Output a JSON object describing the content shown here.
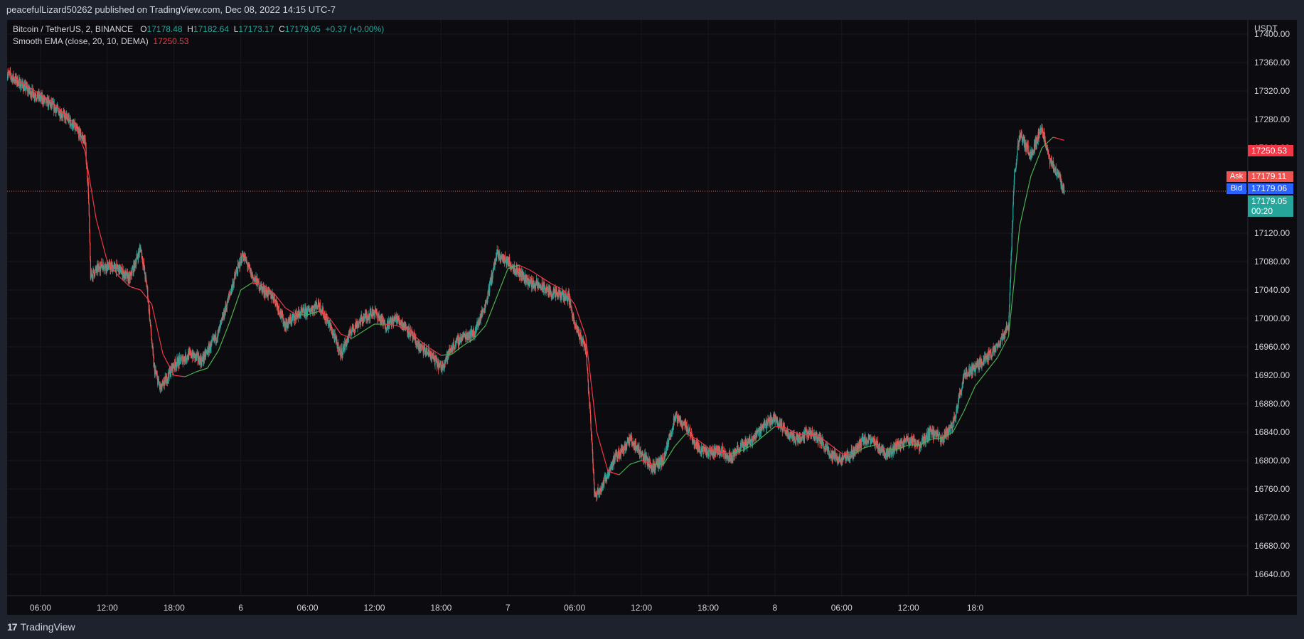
{
  "header": {
    "publisher": "peacefulLizard50262 published on TradingView.com, Dec 08, 2022 14:15 UTC-7"
  },
  "legend": {
    "symbol": "Bitcoin / TetherUS, 2, BINANCE",
    "o_label": "O",
    "o_value": "17178.48",
    "h_label": "H",
    "h_value": "17182.64",
    "l_label": "L",
    "l_value": "17173.17",
    "c_label": "C",
    "c_value": "17179.05",
    "change": "+0.37 (+0.00%)",
    "indicator": "Smooth EMA (close, 20, 10, DEMA)",
    "indicator_value": "17250.53"
  },
  "axis": {
    "currency": "USDT",
    "y_ticks": [
      "17400.00",
      "17360.00",
      "17320.00",
      "17280.00",
      "17240.00",
      "17120.00",
      "17080.00",
      "17040.00",
      "17000.00",
      "16960.00",
      "16920.00",
      "16880.00",
      "16840.00",
      "16800.00",
      "16760.00",
      "16720.00",
      "16680.00",
      "16640.00"
    ],
    "x_ticks": [
      "06:00",
      "12:00",
      "18:00",
      "6",
      "06:00",
      "12:00",
      "18:00",
      "7",
      "06:00",
      "12:00",
      "18:00",
      "8",
      "06:00",
      "12:00",
      "18:0"
    ]
  },
  "labels": {
    "ema_price": "17250.53",
    "ask_tag": "Ask",
    "ask_price": "17179.11",
    "bid_tag": "Bid",
    "bid_price": "17179.06",
    "last_price": "17179.05",
    "countdown": "00:20"
  },
  "footer": {
    "brand": "TradingView",
    "logo_glyph": "17"
  },
  "colors": {
    "up": "#26a69a",
    "down": "#ef5350",
    "ema_down": "#f23645",
    "ema_up": "#4caf50",
    "bid": "#2962ff",
    "bg": "#0c0c10"
  },
  "chart_data": {
    "type": "candlestick",
    "ylim": [
      16610,
      17420
    ],
    "x_hours_range": [
      -21,
      90.5
    ],
    "last_price": 17179.05,
    "ema_value": 17250.53,
    "anchors": [
      [
        -21,
        17345
      ],
      [
        -19,
        17320
      ],
      [
        -17,
        17300
      ],
      [
        -15.5,
        17280
      ],
      [
        -14,
        17250
      ],
      [
        -13.7,
        17180
      ],
      [
        -13.5,
        17060
      ],
      [
        -12.5,
        17075
      ],
      [
        -11,
        17070
      ],
      [
        -10,
        17055
      ],
      [
        -9,
        17100
      ],
      [
        -8.4,
        17040
      ],
      [
        -7.8,
        16930
      ],
      [
        -7.2,
        16900
      ],
      [
        -6,
        16935
      ],
      [
        -4.5,
        16950
      ],
      [
        -3.5,
        16940
      ],
      [
        -2,
        16980
      ],
      [
        -0.5,
        17060
      ],
      [
        0.2,
        17090
      ],
      [
        1,
        17060
      ],
      [
        2,
        17040
      ],
      [
        3,
        17030
      ],
      [
        4,
        16990
      ],
      [
        5,
        17005
      ],
      [
        6,
        17010
      ],
      [
        7,
        17020
      ],
      [
        8,
        16990
      ],
      [
        9,
        16950
      ],
      [
        10,
        16985
      ],
      [
        11,
        17000
      ],
      [
        12,
        17010
      ],
      [
        13,
        16990
      ],
      [
        14,
        17000
      ],
      [
        15,
        16985
      ],
      [
        16,
        16960
      ],
      [
        17,
        16950
      ],
      [
        18,
        16930
      ],
      [
        19,
        16960
      ],
      [
        20,
        16975
      ],
      [
        21,
        16980
      ],
      [
        22,
        17020
      ],
      [
        23,
        17090
      ],
      [
        24,
        17080
      ],
      [
        25,
        17065
      ],
      [
        26,
        17050
      ],
      [
        27,
        17045
      ],
      [
        28,
        17035
      ],
      [
        29.5,
        17030
      ],
      [
        30,
        16990
      ],
      [
        31,
        16960
      ],
      [
        31.5,
        16840
      ],
      [
        31.8,
        16750
      ],
      [
        32.5,
        16765
      ],
      [
        33.5,
        16800
      ],
      [
        35,
        16830
      ],
      [
        36,
        16810
      ],
      [
        37,
        16790
      ],
      [
        38,
        16800
      ],
      [
        39,
        16860
      ],
      [
        40,
        16850
      ],
      [
        41,
        16820
      ],
      [
        42,
        16810
      ],
      [
        43,
        16815
      ],
      [
        44,
        16805
      ],
      [
        45,
        16820
      ],
      [
        46,
        16830
      ],
      [
        47,
        16850
      ],
      [
        48,
        16860
      ],
      [
        49,
        16840
      ],
      [
        50,
        16830
      ],
      [
        51,
        16840
      ],
      [
        52,
        16830
      ],
      [
        53,
        16810
      ],
      [
        54,
        16800
      ],
      [
        55,
        16810
      ],
      [
        56,
        16830
      ],
      [
        57,
        16825
      ],
      [
        58,
        16810
      ],
      [
        59,
        16820
      ],
      [
        60,
        16830
      ],
      [
        61,
        16820
      ],
      [
        62,
        16840
      ],
      [
        63,
        16830
      ],
      [
        64,
        16850
      ],
      [
        65,
        16920
      ],
      [
        66,
        16930
      ],
      [
        67,
        16945
      ],
      [
        68,
        16960
      ],
      [
        69,
        16990
      ],
      [
        69.5,
        17200
      ],
      [
        70,
        17260
      ],
      [
        71,
        17230
      ],
      [
        72,
        17270
      ],
      [
        72.5,
        17230
      ],
      [
        73.5,
        17200
      ],
      [
        74,
        17179
      ]
    ],
    "ema_anchors": [
      [
        -21,
        17345
      ],
      [
        -19,
        17325
      ],
      [
        -17,
        17305
      ],
      [
        -15,
        17275
      ],
      [
        -14,
        17235
      ],
      [
        -13,
        17140
      ],
      [
        -12,
        17080
      ],
      [
        -11,
        17060
      ],
      [
        -10,
        17045
      ],
      [
        -9,
        17040
      ],
      [
        -8,
        17020
      ],
      [
        -7,
        16950
      ],
      [
        -6,
        16920
      ],
      [
        -5,
        16918
      ],
      [
        -4,
        16925
      ],
      [
        -3,
        16930
      ],
      [
        -2,
        16955
      ],
      [
        -1,
        16995
      ],
      [
        0,
        17040
      ],
      [
        1,
        17050
      ],
      [
        2,
        17048
      ],
      [
        3,
        17035
      ],
      [
        4,
        17015
      ],
      [
        5,
        17005
      ],
      [
        6,
        17005
      ],
      [
        7,
        17010
      ],
      [
        8,
        17000
      ],
      [
        9,
        16978
      ],
      [
        10,
        16972
      ],
      [
        11,
        16982
      ],
      [
        12,
        16992
      ],
      [
        13,
        16992
      ],
      [
        14,
        16990
      ],
      [
        15,
        16984
      ],
      [
        16,
        16970
      ],
      [
        17,
        16958
      ],
      [
        18,
        16948
      ],
      [
        19,
        16950
      ],
      [
        20,
        16962
      ],
      [
        21,
        16972
      ],
      [
        22,
        16990
      ],
      [
        23,
        17030
      ],
      [
        24,
        17070
      ],
      [
        25,
        17075
      ],
      [
        26,
        17068
      ],
      [
        27,
        17058
      ],
      [
        28,
        17048
      ],
      [
        29,
        17040
      ],
      [
        30,
        17020
      ],
      [
        31,
        16975
      ],
      [
        32,
        16840
      ],
      [
        33,
        16785
      ],
      [
        34,
        16780
      ],
      [
        35,
        16795
      ],
      [
        36,
        16800
      ],
      [
        37,
        16795
      ],
      [
        38,
        16795
      ],
      [
        39,
        16820
      ],
      [
        40,
        16838
      ],
      [
        41,
        16830
      ],
      [
        42,
        16818
      ],
      [
        43,
        16812
      ],
      [
        44,
        16810
      ],
      [
        45,
        16814
      ],
      [
        46,
        16822
      ],
      [
        47,
        16835
      ],
      [
        48,
        16848
      ],
      [
        49,
        16846
      ],
      [
        50,
        16838
      ],
      [
        51,
        16836
      ],
      [
        52,
        16834
      ],
      [
        53,
        16822
      ],
      [
        54,
        16810
      ],
      [
        55,
        16808
      ],
      [
        56,
        16818
      ],
      [
        57,
        16822
      ],
      [
        58,
        16816
      ],
      [
        59,
        16816
      ],
      [
        60,
        16822
      ],
      [
        61,
        16822
      ],
      [
        62,
        16830
      ],
      [
        63,
        16832
      ],
      [
        64,
        16840
      ],
      [
        65,
        16870
      ],
      [
        66,
        16905
      ],
      [
        67,
        16925
      ],
      [
        68,
        16945
      ],
      [
        69,
        16975
      ],
      [
        70,
        17130
      ],
      [
        71,
        17200
      ],
      [
        72,
        17240
      ],
      [
        73,
        17255
      ],
      [
        74,
        17250.53
      ]
    ]
  }
}
